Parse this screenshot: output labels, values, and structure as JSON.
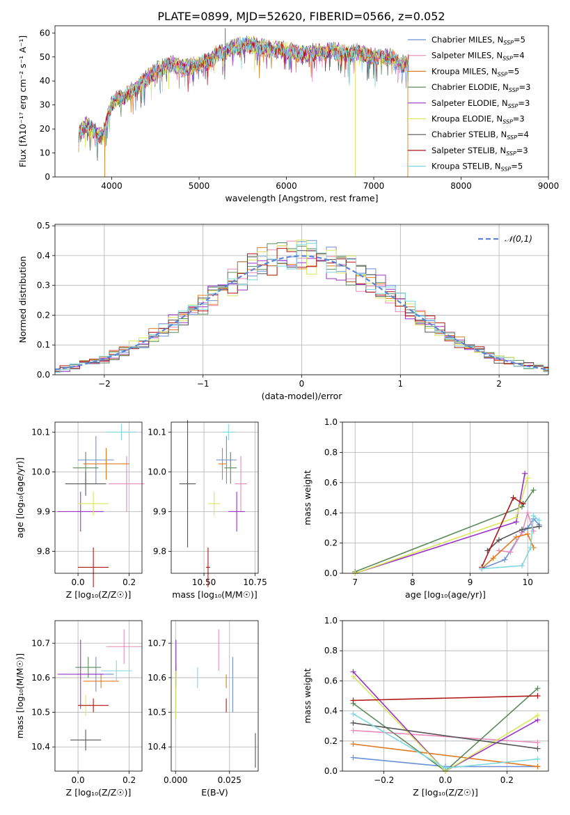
{
  "figure_title": "PLATE=0899, MJD=52620, FIBERID=0566, z=0.052",
  "colors": {
    "Chabrier MILES": "#6a8fd6",
    "Salpeter MILES": "#e88bb9",
    "Kroupa MILES": "#e07b22",
    "Chabrier ELODIE": "#5b8a5b",
    "Salpeter ELODIE": "#9b30c8",
    "Kroupa ELODIE": "#d8e85a",
    "Chabrier STELIB": "#555555",
    "Salpeter STELIB": "#b01515",
    "Kroupa STELIB": "#7fd8e0"
  },
  "models": [
    {
      "label": "Chabrier MILES, N",
      "sub": "SSP",
      "suffix": "=5"
    },
    {
      "label": "Salpeter MILES, N",
      "sub": "SSP",
      "suffix": "=4"
    },
    {
      "label": "Kroupa MILES, N",
      "sub": "SSP",
      "suffix": "=5"
    },
    {
      "label": "Chabrier ELODIE, N",
      "sub": "SSP",
      "suffix": "=3"
    },
    {
      "label": "Salpeter ELODIE, N",
      "sub": "SSP",
      "suffix": "=3"
    },
    {
      "label": "Kroupa ELODIE, N",
      "sub": "SSP",
      "suffix": "=3"
    },
    {
      "label": "Chabrier STELIB, N",
      "sub": "SSP",
      "suffix": "=4"
    },
    {
      "label": "Salpeter STELIB, N",
      "sub": "SSP",
      "suffix": "=3"
    },
    {
      "label": "Kroupa STELIB, N",
      "sub": "SSP",
      "suffix": "=5"
    }
  ],
  "chart_data": [
    {
      "id": "spectrum",
      "type": "line",
      "xlabel": "wavelength [Angstrom, rest frame]",
      "ylabel": "Flux [fλ10⁻¹⁷ erg cm⁻² s⁻¹ A⁻¹]",
      "xlim": [
        3350,
        9000
      ],
      "ylim": [
        0,
        63
      ],
      "xticks": [
        4000,
        5000,
        6000,
        7000,
        8000,
        9000
      ],
      "yticks": [
        0,
        10,
        20,
        30,
        40,
        50,
        60
      ],
      "grid": false,
      "legend": "right",
      "envelope": {
        "x": [
          3620,
          3700,
          3800,
          3900,
          4000,
          4100,
          4200,
          4300,
          4400,
          4500,
          4600,
          4700,
          4800,
          4900,
          5000,
          5100,
          5200,
          5300,
          5400,
          5500,
          5600,
          5700,
          5800,
          5900,
          6000,
          6100,
          6200,
          6300,
          6400,
          6500,
          6600,
          6700,
          6800,
          6900,
          7000,
          7100,
          7200,
          7300,
          7400
        ],
        "y": [
          17,
          22,
          19,
          17,
          31,
          33,
          35,
          38,
          41,
          44,
          46,
          47,
          45,
          46,
          47,
          48,
          51,
          52,
          54,
          55,
          55,
          54,
          53,
          53,
          53,
          52,
          51,
          52,
          52,
          53,
          52,
          51,
          52,
          51,
          50,
          50,
          50,
          47,
          47
        ]
      }
    },
    {
      "id": "residuals",
      "type": "step",
      "xlabel": "(data-model)/error",
      "ylabel": "Normed distribution",
      "xlim": [
        -2.5,
        2.5
      ],
      "ylim": [
        0,
        0.505
      ],
      "xticks": [
        -2,
        -1,
        0,
        1,
        2
      ],
      "yticks": [
        0.0,
        0.1,
        0.2,
        0.3,
        0.4,
        0.5
      ],
      "grid": true,
      "legend": "top-right",
      "gaussian_label": "𝒩(0,1)",
      "bin_width": 0.1
    },
    {
      "id": "age_vs_Z",
      "type": "errorbar",
      "xlabel": "Z [log₁₀(Z/Z☉)]",
      "ylabel": "age  [log₁₀(age/yr)]",
      "xlim": [
        -0.09,
        0.25
      ],
      "ylim": [
        9.745,
        10.125
      ],
      "xticks": [
        0.0,
        0.2
      ],
      "yticks": [
        9.8,
        9.9,
        10.0,
        10.1
      ],
      "grid": true,
      "points": [
        {
          "x": 0.07,
          "y": 10.03,
          "xerr": 0.07,
          "yerr": 0.06
        },
        {
          "x": 0.19,
          "y": 9.97,
          "xerr": 0.07,
          "yerr": 0.07
        },
        {
          "x": 0.11,
          "y": 10.02,
          "xerr": 0.09,
          "yerr": 0.04
        },
        {
          "x": 0.03,
          "y": 10.01,
          "xerr": 0.05,
          "yerr": 0.04
        },
        {
          "x": 0.01,
          "y": 9.9,
          "xerr": 0.09,
          "yerr": 0.05
        },
        {
          "x": 0.06,
          "y": 9.92,
          "xerr": 0.06,
          "yerr": 0.03
        },
        {
          "x": 0.03,
          "y": 9.97,
          "xerr": 0.08,
          "yerr": 0.03
        },
        {
          "x": 0.06,
          "y": 9.76,
          "xerr": 0.06,
          "yerr": 0.05
        },
        {
          "x": 0.17,
          "y": 10.1,
          "xerr": 0.06,
          "yerr": 0.02
        }
      ]
    },
    {
      "id": "age_vs_mass",
      "type": "errorbar",
      "xlabel": "mass [log₁₀(M/M☉)]",
      "ylabel": "",
      "xlim": [
        10.34,
        10.765
      ],
      "ylim": [
        9.745,
        10.125
      ],
      "xticks": [
        10.5,
        10.75
      ],
      "yticks": [
        9.8,
        9.9,
        10.0,
        10.1
      ],
      "grid": true,
      "points": [
        {
          "x": 10.61,
          "y": 10.03,
          "xerr": 0.05,
          "yerr": 0.06
        },
        {
          "x": 10.68,
          "y": 9.97,
          "xerr": 0.03,
          "yerr": 0.07
        },
        {
          "x": 10.59,
          "y": 10.02,
          "xerr": 0.02,
          "yerr": 0.04
        },
        {
          "x": 10.63,
          "y": 10.01,
          "xerr": 0.03,
          "yerr": 0.04
        },
        {
          "x": 10.66,
          "y": 9.9,
          "xerr": 0.04,
          "yerr": 0.05
        },
        {
          "x": 10.55,
          "y": 9.92,
          "xerr": 0.03,
          "yerr": 0.03
        },
        {
          "x": 10.42,
          "y": 9.97,
          "xerr": 0.04,
          "yerr": 0.16
        },
        {
          "x": 10.52,
          "y": 9.76,
          "xerr": 0.01,
          "yerr": 0.05
        },
        {
          "x": 10.62,
          "y": 10.1,
          "xerr": 0.03,
          "yerr": 0.02
        }
      ]
    },
    {
      "id": "weights_vs_age",
      "type": "line",
      "xlabel": "age  [log₁₀(age/yr)]",
      "ylabel": "mass weight",
      "xlim": [
        6.78,
        10.36
      ],
      "ylim": [
        0,
        1.0
      ],
      "xticks": [
        7,
        8,
        9,
        10
      ],
      "yticks": [
        0.0,
        0.2,
        0.4,
        0.6,
        0.8,
        1.0
      ],
      "grid": true,
      "series": [
        {
          "x": [
            9.2,
            9.6,
            9.9,
            10.0,
            10.1,
            10.2
          ],
          "y": [
            0.03,
            0.09,
            0.27,
            0.3,
            0.36,
            0.32
          ]
        },
        {
          "x": [
            9.5,
            9.7,
            9.9,
            10.0,
            10.1
          ],
          "y": [
            0.15,
            0.14,
            0.27,
            0.4,
            0.28
          ]
        },
        {
          "x": [
            9.2,
            9.4,
            9.8,
            10.0,
            10.1
          ],
          "y": [
            0.03,
            0.1,
            0.24,
            0.26,
            0.17
          ]
        },
        {
          "x": [
            7.0,
            9.9,
            10.1
          ],
          "y": [
            0.01,
            0.44,
            0.55
          ]
        },
        {
          "x": [
            7.0,
            9.8,
            9.95
          ],
          "y": [
            0.0,
            0.34,
            0.66
          ]
        },
        {
          "x": [
            7.0,
            9.8,
            10.0
          ],
          "y": [
            0.0,
            0.37,
            0.63
          ]
        },
        {
          "x": [
            9.3,
            9.5,
            9.9,
            10.2
          ],
          "y": [
            0.15,
            0.22,
            0.29,
            0.31
          ]
        },
        {
          "x": [
            9.2,
            9.75,
            9.92
          ],
          "y": [
            0.04,
            0.5,
            0.46
          ]
        },
        {
          "x": [
            9.2,
            9.9,
            10.05,
            10.1,
            10.2
          ],
          "y": [
            0.03,
            0.05,
            0.17,
            0.38,
            0.35
          ]
        }
      ]
    },
    {
      "id": "mass_vs_Z",
      "type": "errorbar",
      "xlabel": "Z [log₁₀(Z/Z☉)]",
      "ylabel": "mass [log₁₀(M/M☉)]",
      "xlim": [
        -0.09,
        0.25
      ],
      "ylim": [
        10.33,
        10.765
      ],
      "xticks": [
        0.0,
        0.2
      ],
      "yticks": [
        10.4,
        10.5,
        10.6,
        10.7
      ],
      "grid": true,
      "points": [
        {
          "x": 0.07,
          "y": 10.61,
          "xerr": 0.07,
          "yerr": 0.05
        },
        {
          "x": 0.18,
          "y": 10.69,
          "xerr": 0.07,
          "yerr": 0.05
        },
        {
          "x": 0.09,
          "y": 10.59,
          "xerr": 0.07,
          "yerr": 0.02
        },
        {
          "x": 0.04,
          "y": 10.63,
          "xerr": 0.05,
          "yerr": 0.03
        },
        {
          "x": 0.01,
          "y": 10.61,
          "xerr": 0.09,
          "yerr": 0.1
        },
        {
          "x": 0.03,
          "y": 10.52,
          "xerr": 0.02,
          "yerr": 0.03
        },
        {
          "x": 0.03,
          "y": 10.42,
          "xerr": 0.06,
          "yerr": 0.03
        },
        {
          "x": 0.06,
          "y": 10.52,
          "xerr": 0.06,
          "yerr": 0.02
        },
        {
          "x": 0.15,
          "y": 10.62,
          "xerr": 0.06,
          "yerr": 0.03
        }
      ]
    },
    {
      "id": "mass_vs_ebv",
      "type": "errorbar",
      "xlabel": "E(B-V)",
      "ylabel": "",
      "xlim": [
        -0.002,
        0.0383
      ],
      "ylim": [
        10.33,
        10.765
      ],
      "xticks": [
        0.0,
        0.025
      ],
      "xtick_labels": [
        "0.000",
        "0.025"
      ],
      "yticks": [
        10.4,
        10.5,
        10.6,
        10.7
      ],
      "grid": true,
      "points": [
        {
          "x": 0.0265,
          "y": 10.58,
          "xerr": 0,
          "yerr": 0.08
        },
        {
          "x": 0.02,
          "y": 10.68,
          "xerr": 0,
          "yerr": 0.06
        },
        {
          "x": 0.0235,
          "y": 10.59,
          "xerr": 0,
          "yerr": 0.02
        },
        {
          "x": 0.0002,
          "y": 10.61,
          "xerr": 0,
          "yerr": 0.03
        },
        {
          "x": 0.0002,
          "y": 10.64,
          "xerr": 0,
          "yerr": 0.07
        },
        {
          "x": 0.0002,
          "y": 10.55,
          "xerr": 0,
          "yerr": 0.07
        },
        {
          "x": 0.037,
          "y": 10.39,
          "xerr": 0,
          "yerr": 0.05
        },
        {
          "x": 0.0235,
          "y": 10.52,
          "xerr": 0,
          "yerr": 0.02
        },
        {
          "x": 0.0102,
          "y": 10.6,
          "xerr": 0,
          "yerr": 0.03
        }
      ]
    },
    {
      "id": "weights_vs_Z",
      "type": "line",
      "xlabel": "Z [log₁₀(Z/Z☉)]",
      "ylabel": "mass weight",
      "xlim": [
        -0.335,
        0.335
      ],
      "ylim": [
        0,
        1.0
      ],
      "xticks": [
        -0.2,
        0.0,
        0.2
      ],
      "yticks": [
        0.0,
        0.2,
        0.4,
        0.6,
        0.8,
        1.0
      ],
      "grid": true,
      "series": [
        {
          "x": [
            -0.3,
            0.0,
            0.3
          ],
          "y": [
            0.09,
            0.03,
            0.03
          ]
        },
        {
          "x": [
            -0.3,
            0.3
          ],
          "y": [
            0.27,
            0.19
          ]
        },
        {
          "x": [
            -0.3,
            0.3
          ],
          "y": [
            0.18,
            0.03
          ]
        },
        {
          "x": [
            -0.3,
            0.0,
            0.3
          ],
          "y": [
            0.45,
            0.0,
            0.55
          ]
        },
        {
          "x": [
            -0.3,
            0.0,
            0.3
          ],
          "y": [
            0.66,
            0.0,
            0.34
          ]
        },
        {
          "x": [
            -0.3,
            0.0,
            0.3
          ],
          "y": [
            0.63,
            0.0,
            0.37
          ]
        },
        {
          "x": [
            -0.3,
            0.3
          ],
          "y": [
            0.32,
            0.15
          ]
        },
        {
          "x": [
            -0.3,
            0.3
          ],
          "y": [
            0.47,
            0.5
          ]
        },
        {
          "x": [
            -0.3,
            0.0,
            0.3
          ],
          "y": [
            0.38,
            0.02,
            0.08
          ]
        }
      ]
    }
  ]
}
